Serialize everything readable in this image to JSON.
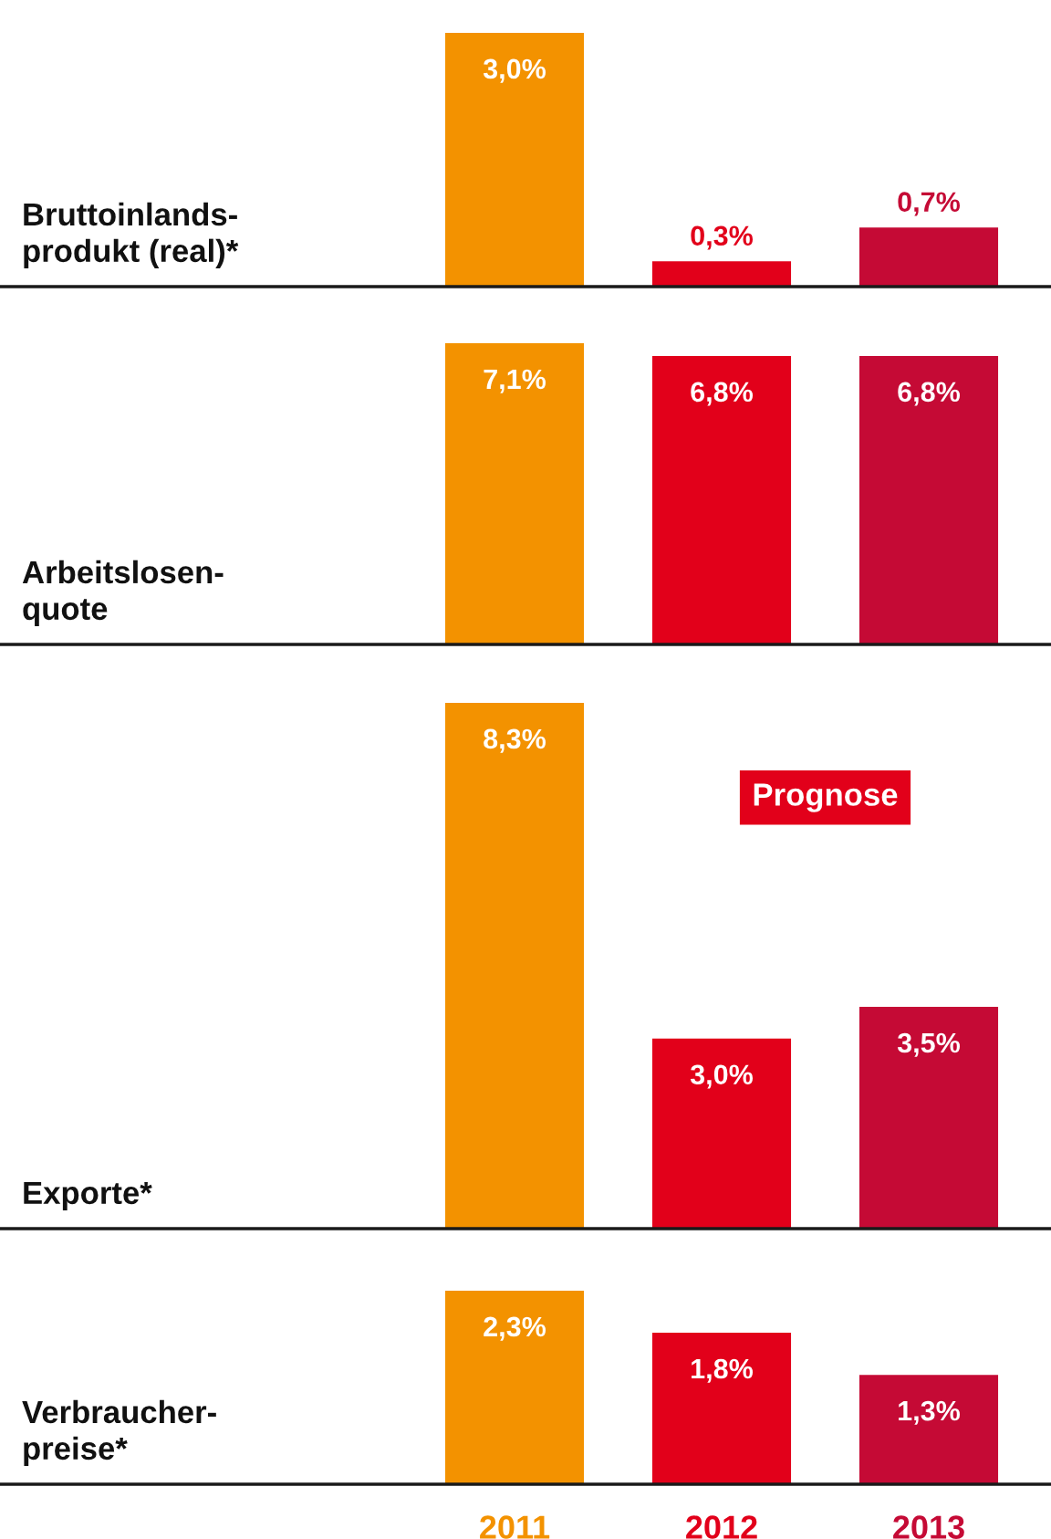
{
  "chart_data": [
    {
      "type": "bar",
      "ylabel": "Bruttoinlands-\nprodukt (real)*",
      "categories": [
        "2011",
        "2012",
        "2013"
      ],
      "colors": [
        "#f39200",
        "#e2001a",
        "#c50a35"
      ],
      "values": [
        3.0,
        0.3,
        0.7
      ],
      "value_labels": [
        "3,0%",
        "0,3%",
        "0,7%"
      ],
      "tick_labels": false
    },
    {
      "type": "bar",
      "ylabel": "Arbeitslosen-\nquote",
      "categories": [
        "2011",
        "2012",
        "2013"
      ],
      "colors": [
        "#f39200",
        "#e2001a",
        "#c50a35"
      ],
      "values": [
        7.1,
        6.8,
        6.8
      ],
      "value_labels": [
        "7,1%",
        "6,8%",
        "6,8%"
      ],
      "tick_labels": false
    },
    {
      "type": "bar",
      "ylabel": "Exporte*",
      "categories": [
        "2011",
        "2012",
        "2013"
      ],
      "colors": [
        "#f39200",
        "#e2001a",
        "#c50a35"
      ],
      "values": [
        8.3,
        3.0,
        3.5
      ],
      "value_labels": [
        "8,3%",
        "3,0%",
        "3,5%"
      ],
      "tick_labels": false,
      "annotations": [
        "Prognose"
      ]
    },
    {
      "type": "bar",
      "ylabel": "Verbraucher-\npreise*",
      "categories": [
        "2011",
        "2012",
        "2013"
      ],
      "colors": [
        "#f39200",
        "#e2001a",
        "#c50a35"
      ],
      "values": [
        2.3,
        1.8,
        1.3
      ],
      "value_labels": [
        "2,3%",
        "1,8%",
        "1,3%"
      ],
      "tick_labels": "x"
    }
  ]
}
